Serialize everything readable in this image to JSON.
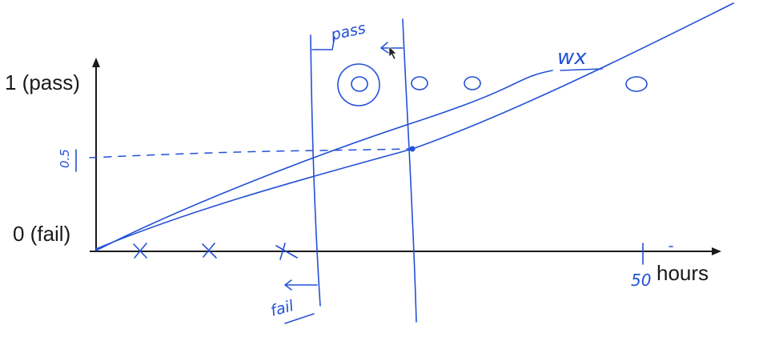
{
  "axes": {
    "y_top_label": "1 (pass)",
    "y_bottom_label": "0 (fail)",
    "x_label": "hours"
  },
  "annotations": {
    "threshold": "0.5",
    "pass": "pass",
    "fail": "fail",
    "wx": "wx",
    "x_tick": "50"
  },
  "colors": {
    "ink": "#2350d8",
    "axis": "#1a1a1a"
  }
}
